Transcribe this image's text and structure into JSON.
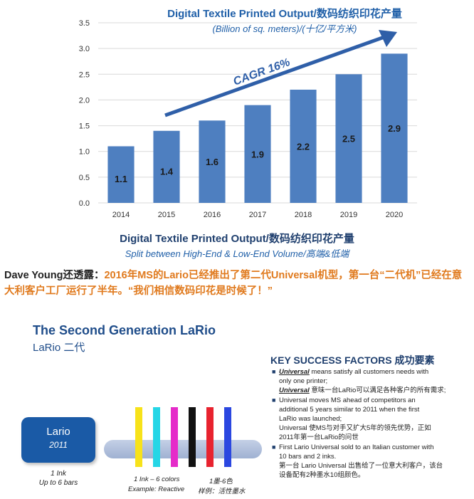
{
  "chart_data": {
    "type": "bar",
    "title": "Digital Textile Printed Output/数码纺织印花产量",
    "subtitle": "(Billion of sq. meters)/(十亿/平方米)",
    "categories": [
      "2014",
      "2015",
      "2016",
      "2017",
      "2018",
      "2019",
      "2020"
    ],
    "values": [
      1.1,
      1.4,
      1.6,
      1.9,
      2.2,
      2.5,
      2.9
    ],
    "value_labels": [
      "1.1",
      "1.4",
      "1.6",
      "1.9",
      "2.2",
      "2.5",
      "2.9"
    ],
    "ylim": [
      0,
      3.5
    ],
    "yticks": [
      "0.0",
      "0.5",
      "1.0",
      "1.5",
      "2.0",
      "2.5",
      "3.0",
      "3.5"
    ],
    "bar_color": "#4e7fc0",
    "grid": true,
    "annotation": "CAGR 16%",
    "annotation_color": "#2f5fa8"
  },
  "section2": {
    "title": "Digital Textile Printed Output/数码纺织印花产量",
    "subtitle": "Split between High-End & Low-End Volume/高端&低端"
  },
  "quote": {
    "speaker": "Dave Young还透露：",
    "body": "2016年MS的Lario已经推出了第二代Universal机型，第一台“二代机”已经在意大利客户工厂运行了半年。“我们相信数码印花是时候了！”",
    "speaker_color": "#222222",
    "body_color": "#e07a1e"
  },
  "slide": {
    "title": "The Second Generation LaRio",
    "subtitle": "LaRio 二代",
    "lario_box": {
      "name": "Lario",
      "year": "2011",
      "color": "#1a5aa6"
    },
    "lario_caption": [
      "1 Ink",
      "Up to 6 bars"
    ],
    "ink_colors": [
      "#f7e21a",
      "#25d6e6",
      "#e52bc9",
      "#111111",
      "#e8232f",
      "#2b47e0"
    ],
    "ink_caption": {
      "line1_en": "1 Ink – 6 colors",
      "line1_cn": "1墨-6色",
      "line2_en": "Example: Reactive",
      "line2_cn": "样例：活性墨水"
    },
    "ksf": {
      "title": "KEY SUCCESS FACTORS 成功要素",
      "items": [
        {
          "em": "Universal",
          "lines": [
            " means satisfy all customers needs with",
            "only one printer;"
          ],
          "em2": "Universal",
          "lines2": [
            " 意味一台LaRio可以满足各种客户的所有需求;"
          ]
        },
        {
          "lines": [
            "Universal moves MS ahead of competitors an",
            "additional 5 years similar to 2011 when the first",
            "LaRio was launched;",
            "Universal 使MS与对手又扩大5年的领先优势，正如",
            "2011年第一台LaRio的问世"
          ]
        },
        {
          "lines": [
            "First Lario Universal sold to an Italian customer with",
            "10 bars and 2 inks.",
            "第一台 Lario Universal 出售给了一位意大利客户，该台",
            "设备配有2种墨水10组颜色。"
          ]
        }
      ]
    }
  }
}
